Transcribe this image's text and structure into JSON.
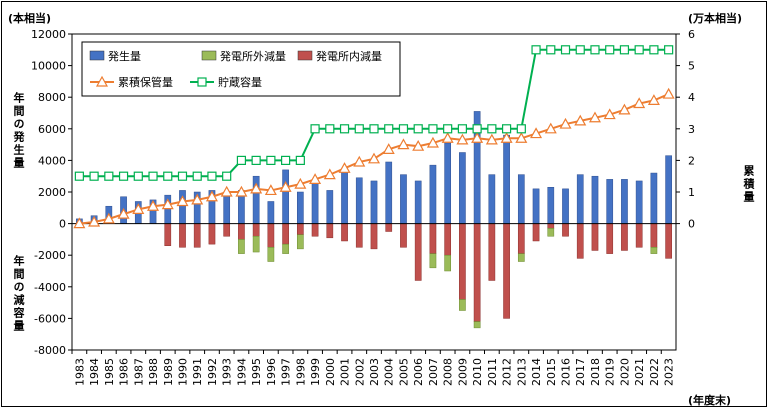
{
  "header": {
    "left_unit": "(本相当)",
    "right_unit": "(万本相当)",
    "x_unit": "(年度末)"
  },
  "axis_labels": {
    "left_top": "年間の発生量",
    "left_bottom": "年間の減容量",
    "right": "累積量"
  },
  "chart_data": {
    "type": "bar",
    "categories": [
      "1983",
      "1984",
      "1985",
      "1986",
      "1987",
      "1988",
      "1989",
      "1990",
      "1991",
      "1992",
      "1993",
      "1994",
      "1995",
      "1996",
      "1997",
      "1998",
      "1999",
      "2000",
      "2001",
      "2002",
      "2003",
      "2004",
      "2005",
      "2006",
      "2007",
      "2008",
      "2009",
      "2010",
      "2011",
      "2012",
      "2013",
      "2014",
      "2015",
      "2016",
      "2017",
      "2018",
      "2019",
      "2020",
      "2021",
      "2022",
      "2023"
    ],
    "y_left": {
      "min": -8000,
      "max": 12000,
      "step": 2000
    },
    "y_right": {
      "min": 0,
      "max": 6,
      "step": 1,
      "from_value": 0
    },
    "series": [
      {
        "name": "発生量",
        "type": "bar",
        "axis": "left",
        "color": "#4472c4",
        "values": [
          300,
          500,
          1100,
          1700,
          1400,
          1500,
          1800,
          2100,
          2000,
          2100,
          2000,
          2100,
          3000,
          1400,
          3400,
          2000,
          2600,
          2100,
          3400,
          2900,
          2700,
          3900,
          3100,
          2700,
          3700,
          5100,
          4500,
          7100,
          3100,
          5600,
          3100,
          2200,
          2300,
          2200,
          3100,
          3000,
          2800,
          2800,
          2700,
          3200,
          4300
        ]
      },
      {
        "name": "発電所外減量",
        "type": "bar",
        "axis": "left",
        "color": "#9bbb59",
        "values": [
          0,
          0,
          0,
          0,
          0,
          0,
          0,
          0,
          0,
          0,
          0,
          -900,
          -1000,
          -900,
          -600,
          -900,
          0,
          0,
          0,
          0,
          0,
          0,
          0,
          0,
          -900,
          -1000,
          -700,
          -400,
          0,
          0,
          -500,
          0,
          -500,
          0,
          0,
          0,
          0,
          0,
          0,
          -400,
          0
        ]
      },
      {
        "name": "発電所内減量",
        "type": "bar",
        "axis": "left",
        "color": "#c0504d",
        "values": [
          0,
          0,
          0,
          0,
          0,
          0,
          -1400,
          -1500,
          -1500,
          -1300,
          -800,
          -1000,
          -800,
          -1500,
          -1300,
          -700,
          -800,
          -900,
          -1100,
          -1500,
          -1600,
          -500,
          -1500,
          -3600,
          -1900,
          -2000,
          -4800,
          -6200,
          -3600,
          -6000,
          -1900,
          -1100,
          -300,
          -800,
          -2200,
          -1700,
          -1900,
          -1700,
          -1500,
          -1500,
          -2200
        ]
      },
      {
        "name": "累積保管量",
        "type": "line",
        "axis": "right",
        "color": "#ed7d31",
        "marker": "triangle",
        "values": [
          0.0,
          0.05,
          0.15,
          0.3,
          0.45,
          0.55,
          0.6,
          0.7,
          0.75,
          0.85,
          1.0,
          1.0,
          1.1,
          1.05,
          1.15,
          1.25,
          1.4,
          1.55,
          1.75,
          1.95,
          2.05,
          2.35,
          2.5,
          2.45,
          2.55,
          2.7,
          2.65,
          2.7,
          2.65,
          2.7,
          2.7,
          2.85,
          3.0,
          3.15,
          3.25,
          3.35,
          3.45,
          3.6,
          3.8,
          3.9,
          4.1
        ]
      },
      {
        "name": "貯蔵容量",
        "type": "line",
        "axis": "right",
        "color": "#00b050",
        "marker": "square",
        "values": [
          1.5,
          1.5,
          1.5,
          1.5,
          1.5,
          1.5,
          1.5,
          1.5,
          1.5,
          1.5,
          1.5,
          2.0,
          2.0,
          2.0,
          2.0,
          2.0,
          3.0,
          3.0,
          3.0,
          3.0,
          3.0,
          3.0,
          3.0,
          3.0,
          3.0,
          3.0,
          3.0,
          3.0,
          3.0,
          3.0,
          3.0,
          5.5,
          5.5,
          5.5,
          5.5,
          5.5,
          5.5,
          5.5,
          5.5,
          5.5,
          5.5
        ]
      }
    ],
    "legend": "top-left",
    "grid": false
  }
}
